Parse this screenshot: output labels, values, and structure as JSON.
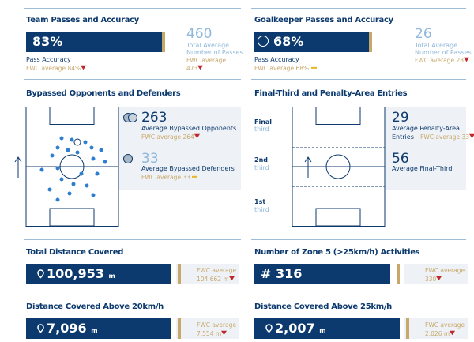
{
  "sections": [
    {
      "title": "Team Passes and Accuracy",
      "main": "83%",
      "main_label": "Pass Accuracy",
      "main_avg": "FWC average 84%",
      "side": "460",
      "side_label_1": "Total Average",
      "side_label_2": "Number of Passes",
      "side_avg_1": "FWC average",
      "side_avg_2": "473"
    },
    {
      "title": "Goalkeeper Passes and Accuracy",
      "main": "68%",
      "main_label": "Pass Accuracy",
      "main_avg": "FWC average 68%",
      "side": "26",
      "side_label_1": "Total Average",
      "side_label_2": "Number of Passes",
      "side_avg_1": "FWC average 28"
    }
  ],
  "bypassed": {
    "title": "Bypassed Opponents and Defenders",
    "opponents": "263",
    "opponents_label": "Average Bypassed Opponents",
    "opponents_avg": "FWC average 264",
    "defenders": "33",
    "defenders_label": "Average Bypassed Defenders",
    "defenders_avg": "FWC average 33"
  },
  "entries": {
    "title": "Final-Third and Penalty-Area Entries",
    "zones": [
      [
        "Final",
        "third"
      ],
      [
        "2nd",
        "third"
      ],
      [
        "1st",
        "third"
      ]
    ],
    "penalty": "29",
    "penalty_label_1": "Average Penalty-Area",
    "penalty_label_2": "Entries",
    "penalty_avg": "FWC average 33",
    "final": "56",
    "final_label": "Average Final-Third"
  },
  "metrics": [
    {
      "title": "Total Distance Covered",
      "value": "100,953",
      "unit": "m",
      "avg_1": "FWC average",
      "avg_2": "104,662 m"
    },
    {
      "title": "Number of Zone 5 (>25km/h) Activities",
      "value": "# 316",
      "avg_1": "FWC average",
      "avg_2": "330"
    },
    {
      "title": "Distance Covered Above 20km/h",
      "value": "7,096",
      "unit": "m",
      "avg_1": "FWC average",
      "avg_2": "7,554 m"
    },
    {
      "title": "Distance Covered Above 25km/h",
      "value": "2,007",
      "unit": "m",
      "avg_1": "FWC average",
      "avg_2": "2,026 m"
    }
  ]
}
